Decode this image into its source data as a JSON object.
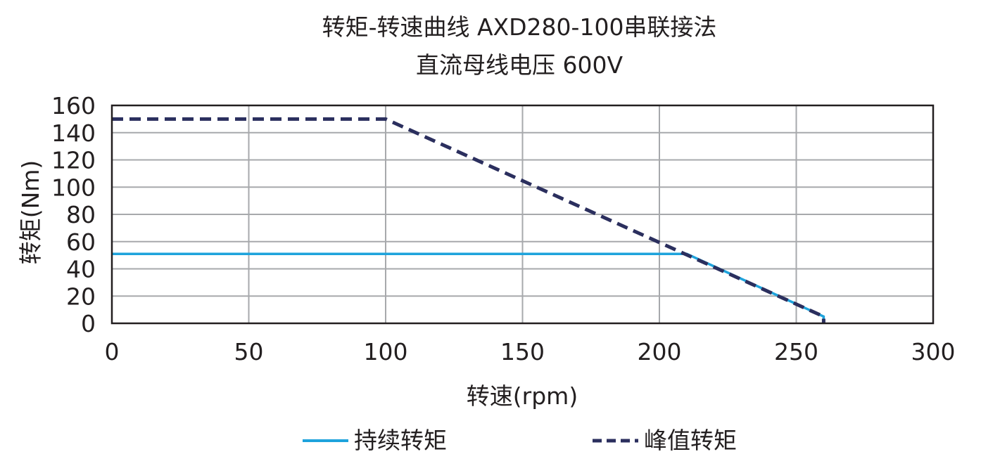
{
  "chart_data": {
    "type": "line",
    "title": [
      "转矩-转速曲线 AXD280-100串联接法",
      "直流母线电压 600V"
    ],
    "xlabel": "转速(rpm)",
    "ylabel": "转矩(Nm)",
    "xlim": [
      0,
      300
    ],
    "ylim": [
      0,
      160
    ],
    "xticks": [
      0,
      50,
      100,
      150,
      200,
      250,
      300
    ],
    "yticks": [
      0,
      20,
      40,
      60,
      80,
      100,
      120,
      140,
      160
    ],
    "grid": true,
    "legend": "bottom",
    "series": [
      {
        "name": "持续转矩",
        "color": "#1ea3dc",
        "style": "solid",
        "x": [
          0,
          210,
          260,
          260
        ],
        "y": [
          51,
          51,
          5,
          0
        ]
      },
      {
        "name": "峰值转矩",
        "color": "#2b2f5e",
        "style": "dashed",
        "x": [
          0,
          100,
          260,
          260
        ],
        "y": [
          150,
          150,
          5,
          0
        ]
      }
    ]
  }
}
